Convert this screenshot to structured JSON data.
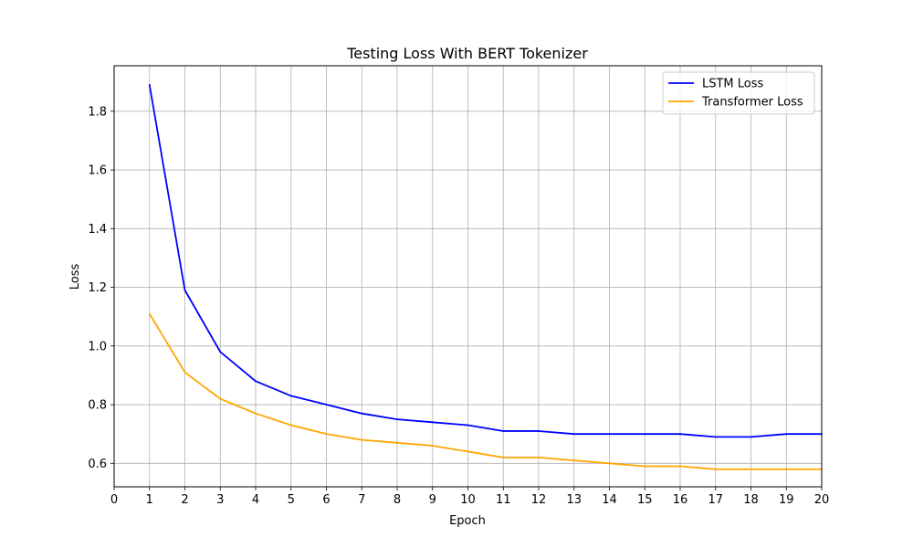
{
  "chart_data": {
    "type": "line",
    "title": "Testing Loss With BERT Tokenizer",
    "xlabel": "Epoch",
    "ylabel": "Loss",
    "xlim": [
      0,
      20
    ],
    "ylim": [
      0.52,
      1.955
    ],
    "xticks": [
      "0",
      "1",
      "2",
      "3",
      "4",
      "5",
      "6",
      "7",
      "8",
      "9",
      "10",
      "11",
      "12",
      "13",
      "14",
      "15",
      "16",
      "17",
      "18",
      "19",
      "20"
    ],
    "yticks": [
      "0.6",
      "0.8",
      "1.0",
      "1.2",
      "1.4",
      "1.6",
      "1.8"
    ],
    "grid": true,
    "legend_position": "top-right",
    "x": [
      1,
      2,
      3,
      4,
      5,
      6,
      7,
      8,
      9,
      10,
      11,
      12,
      13,
      14,
      15,
      16,
      17,
      18,
      19,
      20
    ],
    "series": [
      {
        "name": "LSTM Loss",
        "color": "#0000ff",
        "values": [
          1.89,
          1.19,
          0.98,
          0.88,
          0.83,
          0.8,
          0.77,
          0.75,
          0.74,
          0.73,
          0.71,
          0.71,
          0.7,
          0.7,
          0.7,
          0.7,
          0.69,
          0.69,
          0.7,
          0.7
        ]
      },
      {
        "name": "Transformer Loss",
        "color": "#ffa500",
        "values": [
          1.11,
          0.91,
          0.82,
          0.77,
          0.73,
          0.7,
          0.68,
          0.67,
          0.66,
          0.64,
          0.62,
          0.62,
          0.61,
          0.6,
          0.59,
          0.59,
          0.58,
          0.58,
          0.58,
          0.58
        ]
      }
    ]
  }
}
